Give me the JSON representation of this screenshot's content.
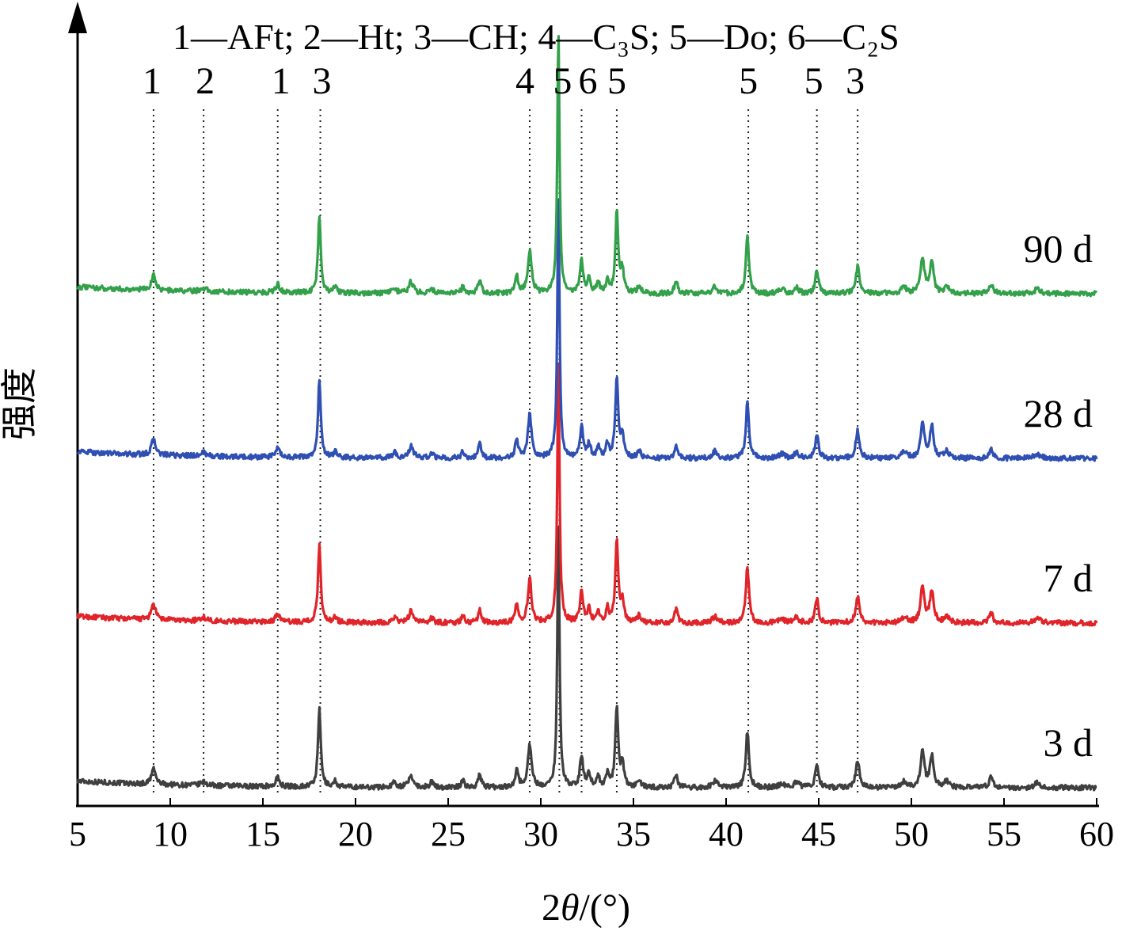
{
  "chart_data": {
    "type": "line",
    "title": "",
    "xlabel_prefix": "2",
    "xlabel_theta": "θ",
    "xlabel_suffix": "/(°)",
    "ylabel": "强度",
    "xlim": [
      5,
      60
    ],
    "xticks": [
      "5",
      "10",
      "15",
      "20",
      "25",
      "30",
      "35",
      "40",
      "45",
      "50",
      "55",
      "60"
    ],
    "legend_line": "1—AFt; 2—Ht; 3—CH; 4—C₃S; 5—Do; 6—C₂S",
    "phases": [
      {
        "id": "1",
        "name": "AFt"
      },
      {
        "id": "2",
        "name": "Ht"
      },
      {
        "id": "3",
        "name": "CH"
      },
      {
        "id": "4",
        "name": "C₃S"
      },
      {
        "id": "5",
        "name": "Do"
      },
      {
        "id": "6",
        "name": "C₂S"
      }
    ],
    "reference_lines": [
      {
        "label": "1",
        "x": 9.1
      },
      {
        "label": "2",
        "x": 11.8
      },
      {
        "label": "1",
        "x": 15.8
      },
      {
        "label": "3",
        "x": 18.1
      },
      {
        "label": "4",
        "x": 29.4
      },
      {
        "label": "5",
        "x": 31.0
      },
      {
        "label": "6",
        "x": 32.2
      },
      {
        "label": "5",
        "x": 34.1
      },
      {
        "label": "5",
        "x": 41.2
      },
      {
        "label": "5",
        "x": 44.9
      },
      {
        "label": "3",
        "x": 47.1
      }
    ],
    "series": [
      {
        "name": "3 d",
        "color": "#3f3f3f",
        "offset": 0
      },
      {
        "name": "7 d",
        "color": "#e0242a",
        "offset": 1
      },
      {
        "name": "28 d",
        "color": "#2f4fb3",
        "offset": 2
      },
      {
        "name": "90 d",
        "color": "#33a04a",
        "offset": 3
      }
    ],
    "peaks": [
      {
        "x": 9.1,
        "height": 14,
        "width": 0.13
      },
      {
        "x": 11.8,
        "height": 3,
        "width": 0.2
      },
      {
        "x": 15.8,
        "height": 8,
        "width": 0.12
      },
      {
        "x": 18.05,
        "height": 68,
        "width": 0.09
      },
      {
        "x": 18.9,
        "height": 5,
        "width": 0.1
      },
      {
        "x": 22.1,
        "height": 5,
        "width": 0.12
      },
      {
        "x": 23.0,
        "height": 10,
        "width": 0.15
      },
      {
        "x": 24.1,
        "height": 5,
        "width": 0.1
      },
      {
        "x": 25.8,
        "height": 6,
        "width": 0.1
      },
      {
        "x": 26.7,
        "height": 12,
        "width": 0.1
      },
      {
        "x": 28.7,
        "height": 16,
        "width": 0.1
      },
      {
        "x": 29.4,
        "height": 38,
        "width": 0.12
      },
      {
        "x": 30.95,
        "height": 232,
        "width": 0.07
      },
      {
        "x": 32.2,
        "height": 28,
        "width": 0.1
      },
      {
        "x": 32.6,
        "height": 12,
        "width": 0.1
      },
      {
        "x": 33.1,
        "height": 9,
        "width": 0.1
      },
      {
        "x": 33.6,
        "height": 12,
        "width": 0.1
      },
      {
        "x": 34.1,
        "height": 72,
        "width": 0.09
      },
      {
        "x": 34.4,
        "height": 20,
        "width": 0.1
      },
      {
        "x": 35.3,
        "height": 6,
        "width": 0.12
      },
      {
        "x": 37.3,
        "height": 12,
        "width": 0.1
      },
      {
        "x": 39.4,
        "height": 6,
        "width": 0.15
      },
      {
        "x": 41.15,
        "height": 50,
        "width": 0.1
      },
      {
        "x": 43.0,
        "height": 4,
        "width": 0.15
      },
      {
        "x": 43.8,
        "height": 5,
        "width": 0.15
      },
      {
        "x": 44.9,
        "height": 22,
        "width": 0.1
      },
      {
        "x": 47.1,
        "height": 24,
        "width": 0.12
      },
      {
        "x": 49.6,
        "height": 5,
        "width": 0.2
      },
      {
        "x": 50.6,
        "height": 32,
        "width": 0.12
      },
      {
        "x": 51.1,
        "height": 28,
        "width": 0.12
      },
      {
        "x": 51.9,
        "height": 6,
        "width": 0.15
      },
      {
        "x": 54.3,
        "height": 9,
        "width": 0.12
      },
      {
        "x": 56.8,
        "height": 4,
        "width": 0.2
      }
    ]
  }
}
